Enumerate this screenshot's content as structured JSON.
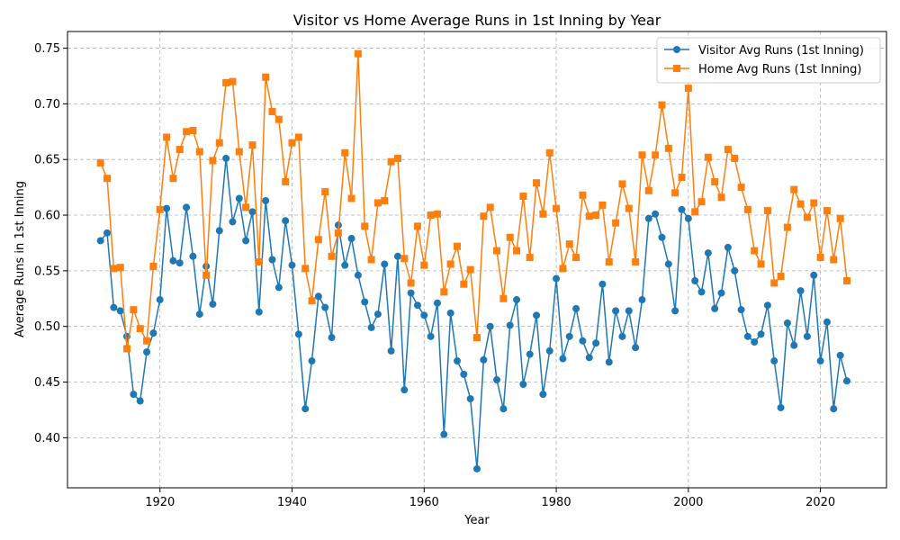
{
  "chart_data": {
    "type": "line",
    "title": "Visitor vs Home Average Runs in 1st Inning by Year",
    "xlabel": "Year",
    "ylabel": "Average Runs in 1st Inning",
    "xlim": [
      1906,
      2030
    ],
    "ylim": [
      0.355,
      0.765
    ],
    "xticks": [
      1920,
      1940,
      1960,
      1980,
      2000,
      2020
    ],
    "yticks": [
      0.4,
      0.45,
      0.5,
      0.55,
      0.6,
      0.65,
      0.7,
      0.75
    ],
    "grid": true,
    "legend_position": "top-right",
    "x": [
      1911,
      1912,
      1913,
      1914,
      1915,
      1916,
      1917,
      1918,
      1919,
      1920,
      1921,
      1922,
      1923,
      1924,
      1925,
      1926,
      1927,
      1928,
      1929,
      1930,
      1931,
      1932,
      1933,
      1934,
      1935,
      1936,
      1937,
      1938,
      1939,
      1940,
      1941,
      1942,
      1943,
      1944,
      1945,
      1946,
      1947,
      1948,
      1949,
      1950,
      1951,
      1952,
      1953,
      1954,
      1955,
      1956,
      1957,
      1958,
      1959,
      1960,
      1961,
      1962,
      1963,
      1964,
      1965,
      1966,
      1967,
      1968,
      1969,
      1970,
      1971,
      1972,
      1973,
      1974,
      1975,
      1976,
      1977,
      1978,
      1979,
      1980,
      1981,
      1982,
      1983,
      1984,
      1985,
      1986,
      1987,
      1988,
      1989,
      1990,
      1991,
      1992,
      1993,
      1994,
      1995,
      1996,
      1997,
      1998,
      1999,
      2000,
      2001,
      2002,
      2003,
      2004,
      2005,
      2006,
      2007,
      2008,
      2009,
      2010,
      2011,
      2012,
      2013,
      2014,
      2015,
      2016,
      2017,
      2018,
      2019,
      2020,
      2021,
      2022,
      2023,
      2024
    ],
    "series": [
      {
        "name": "Visitor Avg Runs (1st Inning)",
        "color": "#1f77b4",
        "marker": "circle",
        "values": [
          0.577,
          0.584,
          0.517,
          0.514,
          0.491,
          0.439,
          0.433,
          0.477,
          0.494,
          0.524,
          0.606,
          0.559,
          0.557,
          0.607,
          0.563,
          0.511,
          0.554,
          0.52,
          0.586,
          0.651,
          0.594,
          0.615,
          0.577,
          0.603,
          0.513,
          0.613,
          0.56,
          0.535,
          0.595,
          0.555,
          0.493,
          0.426,
          0.469,
          0.527,
          0.517,
          0.49,
          0.591,
          0.555,
          0.579,
          0.546,
          0.522,
          0.499,
          0.511,
          0.556,
          0.478,
          0.563,
          0.443,
          0.53,
          0.519,
          0.51,
          0.491,
          0.521,
          0.403,
          0.512,
          0.469,
          0.457,
          0.435,
          0.372,
          0.47,
          0.5,
          0.452,
          0.426,
          0.501,
          0.524,
          0.448,
          0.475,
          0.51,
          0.439,
          0.478,
          0.543,
          0.471,
          0.491,
          0.516,
          0.487,
          0.472,
          0.485,
          0.538,
          0.468,
          0.514,
          0.491,
          0.514,
          0.481,
          0.524,
          0.597,
          0.601,
          0.58,
          0.556,
          0.514,
          0.605,
          0.597,
          0.541,
          0.531,
          0.566,
          0.516,
          0.53,
          0.571,
          0.55,
          0.515,
          0.491,
          0.486,
          0.493,
          0.519,
          0.469,
          0.427,
          0.503,
          0.483,
          0.532,
          0.491,
          0.546,
          0.469,
          0.504,
          0.426,
          0.474,
          0.451
        ]
      },
      {
        "name": "Home Avg Runs (1st Inning)",
        "color": "#ff7f0e",
        "marker": "square",
        "values": [
          0.647,
          0.633,
          0.552,
          0.553,
          0.48,
          0.515,
          0.498,
          0.487,
          0.554,
          0.605,
          0.67,
          0.633,
          0.659,
          0.675,
          0.676,
          0.657,
          0.546,
          0.649,
          0.665,
          0.719,
          0.72,
          0.657,
          0.607,
          0.663,
          0.558,
          0.724,
          0.693,
          0.686,
          0.63,
          0.665,
          0.67,
          0.552,
          0.523,
          0.578,
          0.621,
          0.563,
          0.584,
          0.656,
          0.615,
          0.745,
          0.59,
          0.56,
          0.611,
          0.613,
          0.648,
          0.651,
          0.561,
          0.539,
          0.59,
          0.555,
          0.6,
          0.601,
          0.531,
          0.556,
          0.572,
          0.538,
          0.551,
          0.49,
          0.599,
          0.607,
          0.568,
          0.525,
          0.58,
          0.568,
          0.617,
          0.562,
          0.629,
          0.601,
          0.656,
          0.606,
          0.552,
          0.574,
          0.562,
          0.618,
          0.599,
          0.6,
          0.609,
          0.558,
          0.593,
          0.628,
          0.606,
          0.558,
          0.654,
          0.622,
          0.654,
          0.699,
          0.66,
          0.62,
          0.634,
          0.714,
          0.603,
          0.612,
          0.652,
          0.63,
          0.616,
          0.659,
          0.651,
          0.625,
          0.605,
          0.568,
          0.556,
          0.604,
          0.539,
          0.545,
          0.589,
          0.623,
          0.61,
          0.598,
          0.611,
          0.562,
          0.604,
          0.56,
          0.597,
          0.541
        ]
      }
    ]
  }
}
